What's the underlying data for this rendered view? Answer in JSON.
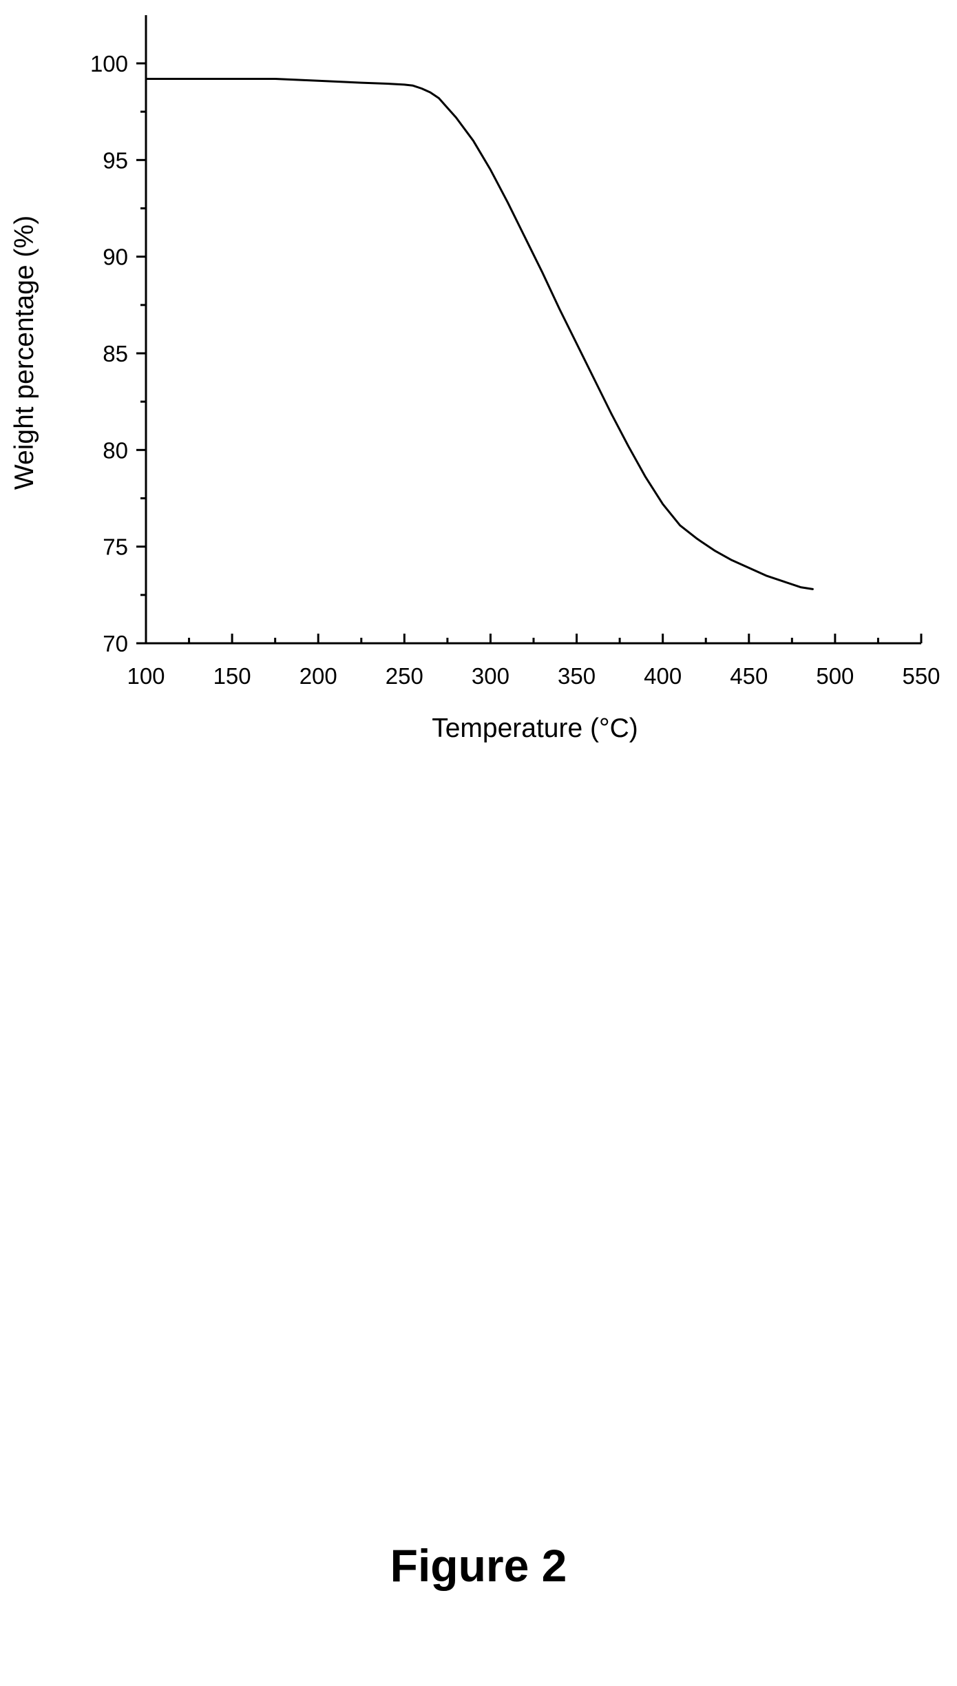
{
  "figure_caption": "Figure 2",
  "chart_data": {
    "type": "line",
    "title": "",
    "xlabel": "Temperature (°C)",
    "ylabel": "Weight percentage (%)",
    "xlim": [
      100,
      550
    ],
    "ylim": [
      70,
      102
    ],
    "x_ticks": [
      100,
      150,
      200,
      250,
      300,
      350,
      400,
      450,
      500,
      550
    ],
    "y_ticks": [
      70,
      75,
      80,
      85,
      90,
      95,
      100
    ],
    "grid": false,
    "legend": "none",
    "line_color": "#000000",
    "series": [
      {
        "x": [
          100,
          110,
          125,
          150,
          175,
          200,
          225,
          240,
          250,
          255,
          260,
          265,
          270,
          275,
          280,
          290,
          300,
          310,
          320,
          330,
          340,
          350,
          360,
          370,
          380,
          390,
          400,
          410,
          420,
          430,
          440,
          450,
          460,
          470,
          480,
          487
        ],
        "y": [
          99.2,
          99.2,
          99.2,
          99.2,
          99.2,
          99.1,
          99.0,
          98.95,
          98.9,
          98.85,
          98.7,
          98.5,
          98.2,
          97.7,
          97.2,
          96.0,
          94.5,
          92.8,
          91.0,
          89.2,
          87.3,
          85.5,
          83.7,
          81.9,
          80.2,
          78.6,
          77.2,
          76.1,
          75.4,
          74.8,
          74.3,
          73.9,
          73.5,
          73.2,
          72.9,
          72.8
        ]
      }
    ]
  }
}
